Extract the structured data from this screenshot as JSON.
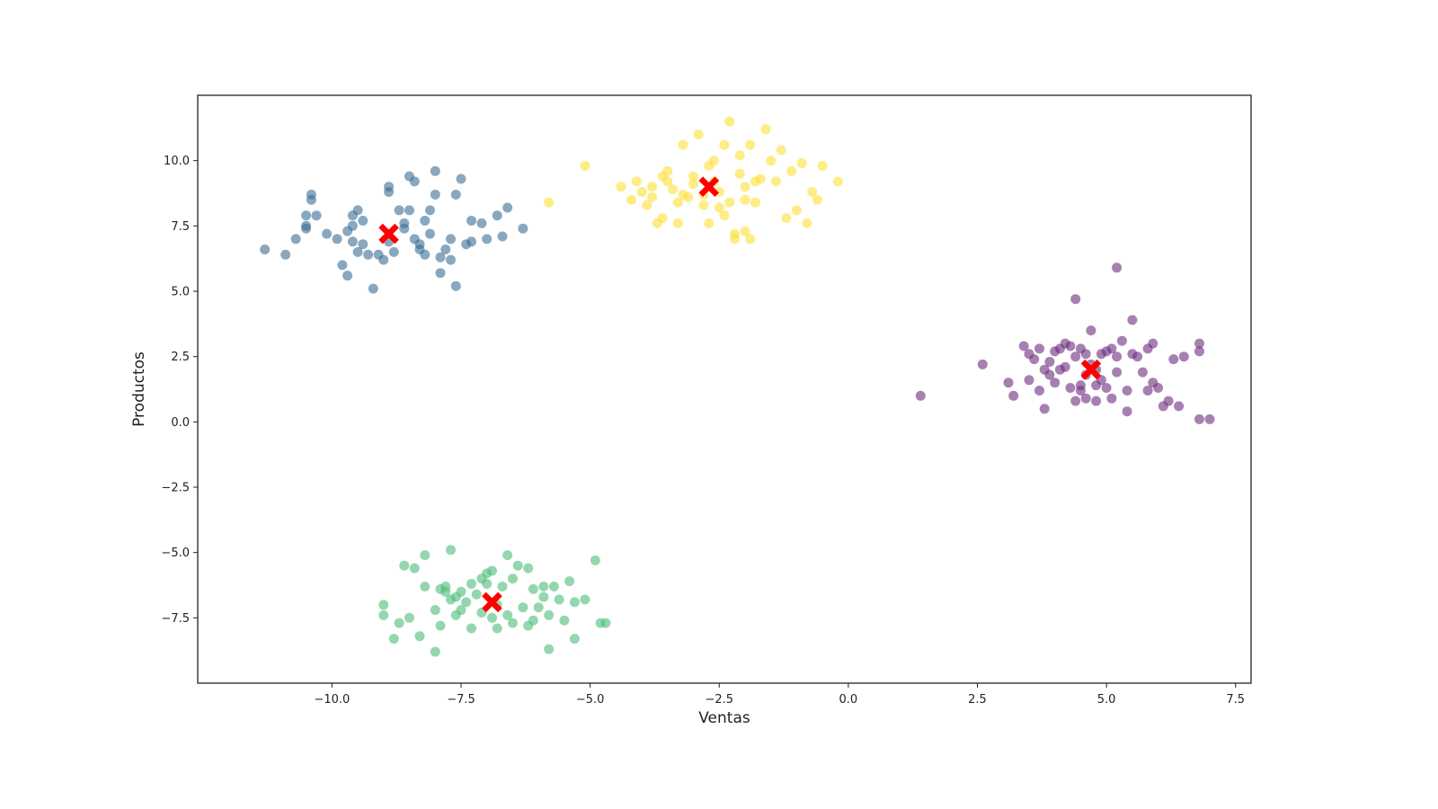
{
  "chart_data": {
    "type": "scatter",
    "xlabel": "Ventas",
    "ylabel": "Productos",
    "xlim": [
      -12.6,
      7.8
    ],
    "ylim": [
      -10.0,
      12.5
    ],
    "x_ticks": [
      -10.0,
      -7.5,
      -5.0,
      -2.5,
      0.0,
      2.5,
      5.0,
      7.5
    ],
    "x_tick_labels": [
      "−10.0",
      "−7.5",
      "−5.0",
      "−2.5",
      "0.0",
      "2.5",
      "5.0",
      "7.5"
    ],
    "y_ticks": [
      -7.5,
      -5.0,
      -2.5,
      0.0,
      2.5,
      5.0,
      7.5,
      10.0
    ],
    "y_tick_labels": [
      "−7.5",
      "−5.0",
      "−2.5",
      "0.0",
      "2.5",
      "5.0",
      "7.5",
      "10.0"
    ],
    "grid": false,
    "point_alpha": 0.6,
    "series": [
      {
        "color": "#3b6e95",
        "points": [
          [
            -11.3,
            6.6
          ],
          [
            -10.9,
            6.4
          ],
          [
            -10.7,
            7.0
          ],
          [
            -10.5,
            7.9
          ],
          [
            -10.5,
            7.4
          ],
          [
            -10.5,
            7.5
          ],
          [
            -10.4,
            8.7
          ],
          [
            -10.4,
            8.5
          ],
          [
            -10.3,
            7.9
          ],
          [
            -10.1,
            7.2
          ],
          [
            -9.9,
            7.0
          ],
          [
            -9.8,
            6.0
          ],
          [
            -9.7,
            7.3
          ],
          [
            -9.7,
            5.6
          ],
          [
            -9.6,
            7.5
          ],
          [
            -9.6,
            7.9
          ],
          [
            -9.6,
            6.9
          ],
          [
            -9.5,
            8.1
          ],
          [
            -9.5,
            6.5
          ],
          [
            -9.4,
            7.7
          ],
          [
            -9.4,
            6.8
          ],
          [
            -9.3,
            6.4
          ],
          [
            -9.2,
            5.1
          ],
          [
            -9.1,
            6.4
          ],
          [
            -9.0,
            6.2
          ],
          [
            -8.9,
            8.8
          ],
          [
            -8.9,
            9.0
          ],
          [
            -8.9,
            6.9
          ],
          [
            -8.8,
            6.5
          ],
          [
            -8.7,
            8.1
          ],
          [
            -8.6,
            7.6
          ],
          [
            -8.6,
            7.4
          ],
          [
            -8.5,
            8.1
          ],
          [
            -8.5,
            9.4
          ],
          [
            -8.4,
            9.2
          ],
          [
            -8.4,
            7.0
          ],
          [
            -8.3,
            6.8
          ],
          [
            -8.3,
            6.6
          ],
          [
            -8.2,
            7.7
          ],
          [
            -8.2,
            6.4
          ],
          [
            -8.1,
            7.2
          ],
          [
            -8.1,
            8.1
          ],
          [
            -8.0,
            8.7
          ],
          [
            -8.0,
            9.6
          ],
          [
            -7.9,
            5.7
          ],
          [
            -7.9,
            6.3
          ],
          [
            -7.8,
            6.6
          ],
          [
            -7.7,
            6.2
          ],
          [
            -7.7,
            7.0
          ],
          [
            -7.6,
            5.2
          ],
          [
            -7.5,
            9.3
          ],
          [
            -7.4,
            6.8
          ],
          [
            -7.3,
            6.9
          ],
          [
            -7.1,
            7.6
          ],
          [
            -7.0,
            7.0
          ],
          [
            -6.8,
            7.9
          ],
          [
            -6.7,
            7.1
          ],
          [
            -6.6,
            8.2
          ],
          [
            -6.3,
            7.4
          ],
          [
            -7.6,
            8.7
          ],
          [
            -7.3,
            7.7
          ]
        ]
      },
      {
        "color": "#fde035",
        "points": [
          [
            -5.8,
            8.4
          ],
          [
            -5.1,
            9.8
          ],
          [
            -4.4,
            9.0
          ],
          [
            -4.2,
            8.5
          ],
          [
            -4.1,
            9.2
          ],
          [
            -4.0,
            8.8
          ],
          [
            -3.9,
            8.3
          ],
          [
            -3.8,
            8.6
          ],
          [
            -3.8,
            9.0
          ],
          [
            -3.7,
            7.6
          ],
          [
            -3.6,
            9.4
          ],
          [
            -3.6,
            7.8
          ],
          [
            -3.5,
            9.2
          ],
          [
            -3.4,
            8.9
          ],
          [
            -3.3,
            8.4
          ],
          [
            -3.3,
            7.6
          ],
          [
            -3.2,
            10.6
          ],
          [
            -3.2,
            8.7
          ],
          [
            -3.1,
            8.6
          ],
          [
            -3.0,
            9.4
          ],
          [
            -3.0,
            9.1
          ],
          [
            -2.9,
            11.0
          ],
          [
            -2.8,
            8.7
          ],
          [
            -2.8,
            8.3
          ],
          [
            -2.7,
            9.8
          ],
          [
            -2.7,
            7.6
          ],
          [
            -2.6,
            9.2
          ],
          [
            -2.5,
            8.8
          ],
          [
            -2.5,
            8.2
          ],
          [
            -2.4,
            10.6
          ],
          [
            -2.4,
            7.9
          ],
          [
            -2.3,
            11.5
          ],
          [
            -2.3,
            8.4
          ],
          [
            -2.2,
            7.0
          ],
          [
            -2.1,
            10.2
          ],
          [
            -2.1,
            9.5
          ],
          [
            -2.0,
            9.0
          ],
          [
            -2.0,
            8.5
          ],
          [
            -1.9,
            7.0
          ],
          [
            -1.9,
            10.6
          ],
          [
            -1.8,
            9.2
          ],
          [
            -1.8,
            8.4
          ],
          [
            -1.7,
            9.3
          ],
          [
            -1.6,
            11.2
          ],
          [
            -1.5,
            10.0
          ],
          [
            -1.4,
            9.2
          ],
          [
            -1.3,
            10.4
          ],
          [
            -1.2,
            7.8
          ],
          [
            -1.1,
            9.6
          ],
          [
            -1.0,
            8.1
          ],
          [
            -0.9,
            9.9
          ],
          [
            -0.8,
            7.6
          ],
          [
            -0.7,
            8.8
          ],
          [
            -0.6,
            8.5
          ],
          [
            -0.5,
            9.8
          ],
          [
            -0.2,
            9.2
          ],
          [
            -2.0,
            7.3
          ],
          [
            -2.2,
            7.2
          ],
          [
            -2.6,
            10.0
          ],
          [
            -3.5,
            9.6
          ]
        ]
      },
      {
        "color": "#6c2b7e",
        "points": [
          [
            1.4,
            1.0
          ],
          [
            2.6,
            2.2
          ],
          [
            3.1,
            1.5
          ],
          [
            3.2,
            1.0
          ],
          [
            3.4,
            2.9
          ],
          [
            3.5,
            2.6
          ],
          [
            3.5,
            1.6
          ],
          [
            3.6,
            2.4
          ],
          [
            3.7,
            2.8
          ],
          [
            3.7,
            1.2
          ],
          [
            3.8,
            2.0
          ],
          [
            3.8,
            0.5
          ],
          [
            3.9,
            1.8
          ],
          [
            3.9,
            2.3
          ],
          [
            4.0,
            2.7
          ],
          [
            4.0,
            1.5
          ],
          [
            4.1,
            2.8
          ],
          [
            4.2,
            2.1
          ],
          [
            4.2,
            3.0
          ],
          [
            4.3,
            2.9
          ],
          [
            4.3,
            1.3
          ],
          [
            4.4,
            2.5
          ],
          [
            4.4,
            0.8
          ],
          [
            4.4,
            4.7
          ],
          [
            4.5,
            2.8
          ],
          [
            4.5,
            1.2
          ],
          [
            4.6,
            2.6
          ],
          [
            4.6,
            1.8
          ],
          [
            4.6,
            0.9
          ],
          [
            4.7,
            3.5
          ],
          [
            4.7,
            2.2
          ],
          [
            4.8,
            1.4
          ],
          [
            4.8,
            0.8
          ],
          [
            4.8,
            2.0
          ],
          [
            4.9,
            2.6
          ],
          [
            4.9,
            1.6
          ],
          [
            5.0,
            2.7
          ],
          [
            5.0,
            1.3
          ],
          [
            5.1,
            2.8
          ],
          [
            5.1,
            0.9
          ],
          [
            5.2,
            5.9
          ],
          [
            5.2,
            2.5
          ],
          [
            5.2,
            1.9
          ],
          [
            5.3,
            3.1
          ],
          [
            5.4,
            1.2
          ],
          [
            5.4,
            0.4
          ],
          [
            5.5,
            2.6
          ],
          [
            5.5,
            3.9
          ],
          [
            5.6,
            2.5
          ],
          [
            5.7,
            1.9
          ],
          [
            5.8,
            2.8
          ],
          [
            5.8,
            1.2
          ],
          [
            5.9,
            3.0
          ],
          [
            5.9,
            1.5
          ],
          [
            6.0,
            1.3
          ],
          [
            6.1,
            0.6
          ],
          [
            6.2,
            0.8
          ],
          [
            6.3,
            2.4
          ],
          [
            6.4,
            0.6
          ],
          [
            6.5,
            2.5
          ],
          [
            6.8,
            2.7
          ],
          [
            6.8,
            3.0
          ],
          [
            6.8,
            0.1
          ],
          [
            7.0,
            0.1
          ],
          [
            4.1,
            2.0
          ],
          [
            4.5,
            1.4
          ]
        ]
      },
      {
        "color": "#4cbd79",
        "points": [
          [
            -9.0,
            -7.4
          ],
          [
            -9.0,
            -7.0
          ],
          [
            -8.8,
            -8.3
          ],
          [
            -8.7,
            -7.7
          ],
          [
            -8.6,
            -5.5
          ],
          [
            -8.5,
            -7.5
          ],
          [
            -8.4,
            -5.6
          ],
          [
            -8.3,
            -8.2
          ],
          [
            -8.2,
            -6.3
          ],
          [
            -8.2,
            -5.1
          ],
          [
            -8.0,
            -7.2
          ],
          [
            -8.0,
            -8.8
          ],
          [
            -7.9,
            -6.4
          ],
          [
            -7.9,
            -7.8
          ],
          [
            -7.8,
            -6.5
          ],
          [
            -7.8,
            -6.3
          ],
          [
            -7.7,
            -6.8
          ],
          [
            -7.7,
            -4.9
          ],
          [
            -7.6,
            -7.4
          ],
          [
            -7.5,
            -6.5
          ],
          [
            -7.5,
            -7.2
          ],
          [
            -7.4,
            -6.9
          ],
          [
            -7.3,
            -6.2
          ],
          [
            -7.3,
            -7.9
          ],
          [
            -7.2,
            -6.6
          ],
          [
            -7.1,
            -6.0
          ],
          [
            -7.0,
            -6.2
          ],
          [
            -7.0,
            -5.8
          ],
          [
            -6.9,
            -5.7
          ],
          [
            -6.8,
            -7.0
          ],
          [
            -6.8,
            -7.9
          ],
          [
            -6.7,
            -6.3
          ],
          [
            -6.6,
            -7.4
          ],
          [
            -6.6,
            -5.1
          ],
          [
            -6.5,
            -6.0
          ],
          [
            -6.5,
            -7.7
          ],
          [
            -6.4,
            -5.5
          ],
          [
            -6.3,
            -7.1
          ],
          [
            -6.2,
            -5.6
          ],
          [
            -6.1,
            -7.6
          ],
          [
            -6.1,
            -6.4
          ],
          [
            -6.0,
            -7.1
          ],
          [
            -5.9,
            -6.7
          ],
          [
            -5.9,
            -6.3
          ],
          [
            -5.8,
            -8.7
          ],
          [
            -5.8,
            -7.4
          ],
          [
            -5.7,
            -6.3
          ],
          [
            -5.6,
            -6.8
          ],
          [
            -5.5,
            -7.6
          ],
          [
            -5.4,
            -6.1
          ],
          [
            -5.3,
            -6.9
          ],
          [
            -5.3,
            -8.3
          ],
          [
            -5.1,
            -6.8
          ],
          [
            -4.9,
            -5.3
          ],
          [
            -4.8,
            -7.7
          ],
          [
            -4.7,
            -7.7
          ],
          [
            -6.9,
            -7.5
          ],
          [
            -7.1,
            -7.3
          ],
          [
            -6.2,
            -7.8
          ],
          [
            -7.6,
            -6.7
          ]
        ]
      }
    ],
    "centroids": {
      "color": "#ff0000",
      "marker": "X",
      "points": [
        [
          -8.9,
          7.2
        ],
        [
          -2.7,
          9.0
        ],
        [
          4.7,
          2.0
        ],
        [
          -6.9,
          -6.9
        ]
      ]
    }
  }
}
